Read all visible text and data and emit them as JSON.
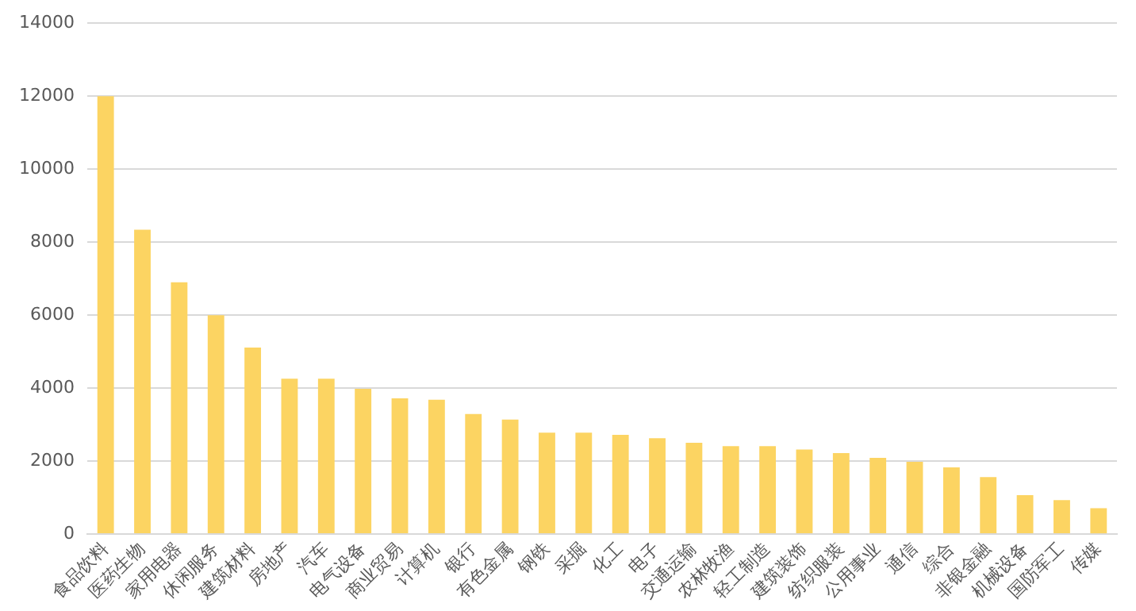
{
  "chart_data": {
    "type": "bar",
    "categories": [
      "食品饮料",
      "医药生物",
      "家用电器",
      "休闲服务",
      "建筑材料",
      "房地产",
      "汽车",
      "电气设备",
      "商业贸易",
      "计算机",
      "银行",
      "有色金属",
      "钢铁",
      "采掘",
      "化工",
      "电子",
      "交通运输",
      "农林牧渔",
      "轻工制造",
      "建筑装饰",
      "纺织服装",
      "公用事业",
      "通信",
      "综合",
      "非银金融",
      "机械设备",
      "国防军工",
      "传媒"
    ],
    "values": [
      12000,
      8340,
      6900,
      6000,
      5110,
      4260,
      4260,
      3980,
      3720,
      3680,
      3290,
      3140,
      2780,
      2780,
      2720,
      2630,
      2500,
      2410,
      2410,
      2320,
      2220,
      2090,
      1980,
      1830,
      1560,
      1070,
      930,
      710
    ],
    "color": "#fcd462",
    "ylim": [
      0,
      14000
    ],
    "yticks": [
      0,
      2000,
      4000,
      6000,
      8000,
      10000,
      12000,
      14000
    ],
    "grid": "y"
  }
}
